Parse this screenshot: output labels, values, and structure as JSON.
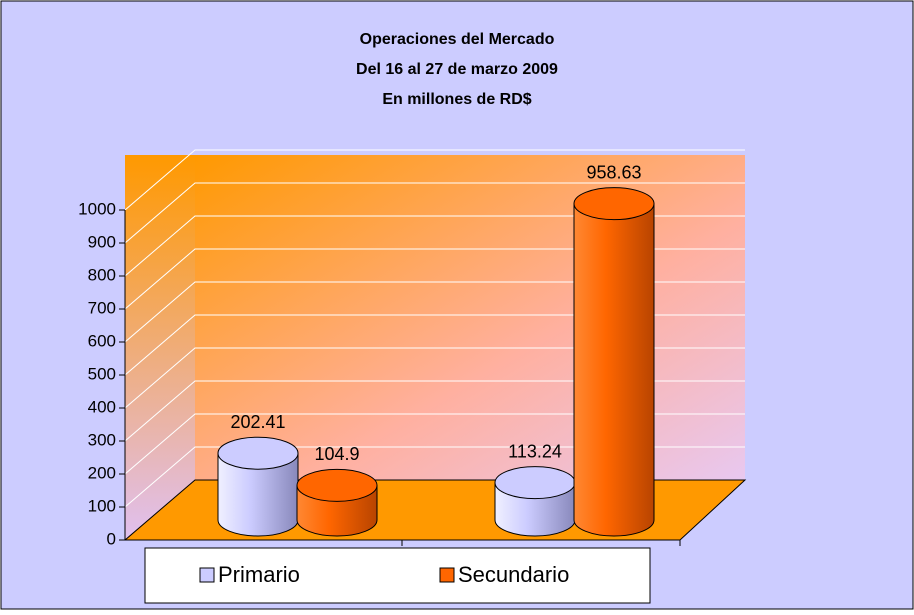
{
  "chart_data": {
    "type": "bar",
    "title": [
      "Operaciones del Mercado",
      "Del 16 al 27 de marzo 2009",
      "En millones de RD$"
    ],
    "categories": [
      null,
      null
    ],
    "series": [
      {
        "name": "Primario",
        "color": "#ccccff",
        "values": [
          202.41,
          113.24
        ]
      },
      {
        "name": "Secundario",
        "color": "#ff6600",
        "values": [
          104.9,
          958.63
        ]
      }
    ],
    "ylim": [
      0,
      1000
    ],
    "yticks": [
      0,
      100,
      200,
      300,
      400,
      500,
      600,
      700,
      800,
      900,
      1000
    ],
    "grid": true,
    "legend": "bottom"
  }
}
